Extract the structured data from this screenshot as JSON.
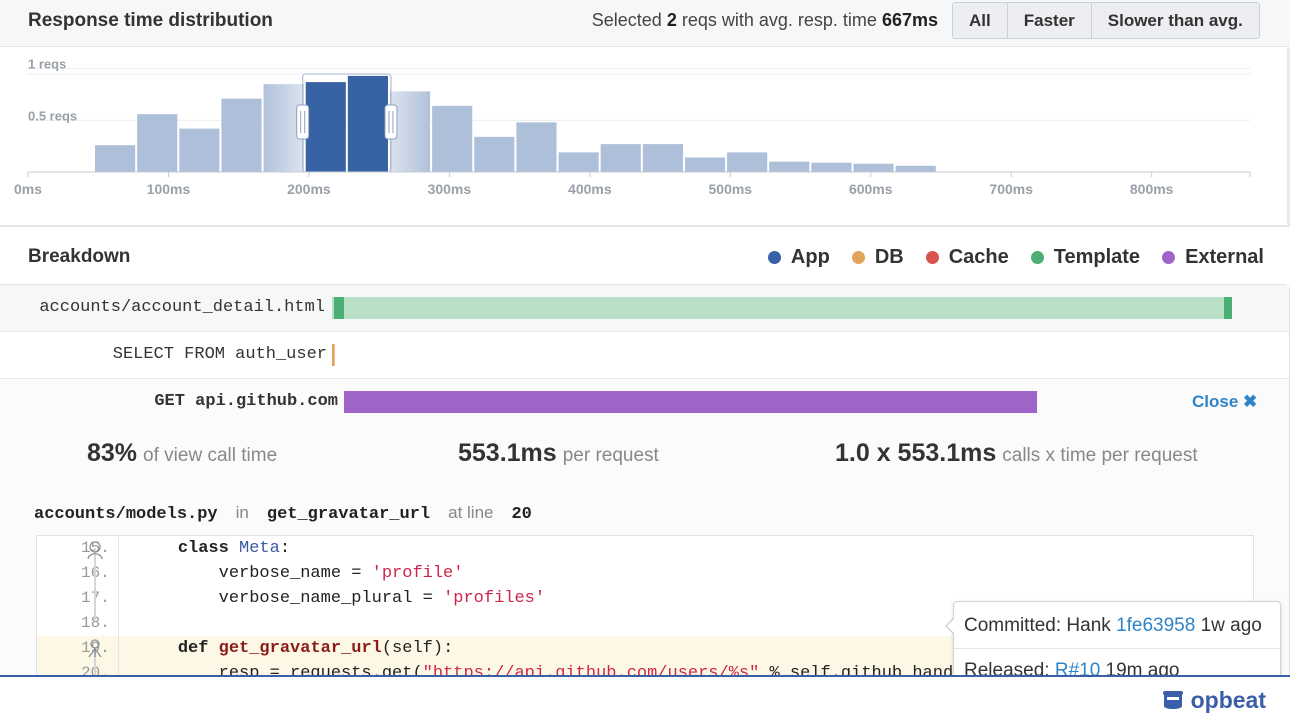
{
  "distribution": {
    "title": "Response time distribution",
    "summary": {
      "prefix": "Selected",
      "count": "2",
      "middle": "reqs with avg. resp. time",
      "avg": "667ms"
    },
    "filters": [
      "All",
      "Faster",
      "Slower than avg."
    ],
    "colors": {
      "bar": "#aebfd9",
      "selected": "#3762a3",
      "axis": "#c7ccd3"
    }
  },
  "chart_data": {
    "type": "bar",
    "x_unit": "ms",
    "xlim": [
      0,
      870
    ],
    "ylim": [
      0,
      1.2
    ],
    "ytick_labels": [
      "1 reqs",
      "0.5 reqs"
    ],
    "yticks": [
      1,
      0.5
    ],
    "xtick_labels": [
      "0ms",
      "100ms",
      "200ms",
      "300ms",
      "400ms",
      "500ms",
      "600ms",
      "700ms",
      "800ms"
    ],
    "xticks": [
      0,
      100,
      200,
      300,
      400,
      500,
      600,
      700,
      800
    ],
    "bin_width": 30,
    "bins_start": [
      47,
      77,
      107,
      137,
      167,
      197,
      227,
      257,
      287,
      317,
      347,
      377,
      407,
      437,
      467,
      497,
      527,
      557,
      587,
      617
    ],
    "values": [
      0.26,
      0.56,
      0.42,
      0.71,
      0.85,
      0.87,
      0.93,
      0.78,
      0.64,
      0.34,
      0.48,
      0.19,
      0.27,
      0.27,
      0.14,
      0.19,
      0.1,
      0.09,
      0.08,
      0.06
    ],
    "selected": [
      false,
      false,
      false,
      false,
      false,
      true,
      true,
      false,
      false,
      false,
      false,
      false,
      false,
      false,
      false,
      false,
      false,
      false,
      false,
      false
    ],
    "selection_range": [
      197,
      257
    ]
  },
  "breakdown": {
    "title": "Breakdown",
    "legend": [
      {
        "label": "App",
        "color": "#3762a3"
      },
      {
        "label": "DB",
        "color": "#e4a35a"
      },
      {
        "label": "Cache",
        "color": "#d9534f"
      },
      {
        "label": "Template",
        "color": "#4cae72"
      },
      {
        "label": "External",
        "color": "#a064c9"
      }
    ],
    "rows": [
      {
        "label": "accounts/account_detail.html",
        "kind": "Template",
        "start_fraction": 0.0,
        "fraction": 1.0
      },
      {
        "label": "SELECT FROM auth_user",
        "kind": "DB",
        "start_fraction": 0.0,
        "fraction": 0.003
      },
      {
        "label": "GET api.github.com",
        "kind": "External",
        "start_fraction": 0.0,
        "fraction": 0.83
      }
    ],
    "close_label": "Close",
    "close_icon": "close-icon",
    "stats": [
      {
        "big": "83%",
        "small": "of view call time"
      },
      {
        "big": "553.1ms",
        "small": "per request"
      },
      {
        "big": "1.0 x 553.1ms",
        "small": "calls x time per request"
      }
    ],
    "location": {
      "file": "accounts/models.py",
      "in_label": "in",
      "function": "get_gravatar_url",
      "line_label": "at line",
      "line": "20"
    },
    "code": {
      "lines": [
        {
          "no": "15.",
          "highlight": false,
          "parts": [
            {
              "t": "    ",
              "c": ""
            },
            {
              "t": "class",
              "c": "kw"
            },
            {
              "t": " ",
              "c": ""
            },
            {
              "t": "Meta",
              "c": "cls"
            },
            {
              "t": ":",
              "c": ""
            }
          ]
        },
        {
          "no": "16.",
          "highlight": false,
          "parts": [
            {
              "t": "        verbose_name = ",
              "c": ""
            },
            {
              "t": "'profile'",
              "c": "str"
            }
          ]
        },
        {
          "no": "17.",
          "highlight": false,
          "parts": [
            {
              "t": "        verbose_name_plural = ",
              "c": ""
            },
            {
              "t": "'profiles'",
              "c": "str"
            }
          ]
        },
        {
          "no": "18.",
          "highlight": false,
          "parts": [
            {
              "t": "",
              "c": ""
            }
          ]
        },
        {
          "no": "19.",
          "highlight": true,
          "parts": [
            {
              "t": "    ",
              "c": ""
            },
            {
              "t": "def",
              "c": "kw"
            },
            {
              "t": " ",
              "c": ""
            },
            {
              "t": "get_gravatar_url",
              "c": "fn"
            },
            {
              "t": "(self):",
              "c": ""
            }
          ]
        },
        {
          "no": "20.",
          "highlight": true,
          "parts": [
            {
              "t": "        resp = requests.get(",
              "c": ""
            },
            {
              "t": "\"https://api.github.com/users/%s\"",
              "c": "str"
            },
            {
              "t": " % self.github_handle)",
              "c": ""
            }
          ]
        }
      ]
    },
    "tooltip": {
      "committed_label": "Committed: Hank",
      "commit_hash": "1fe63958",
      "committed_ago": "1w ago",
      "released_label": "Released:",
      "release": "R#10",
      "released_ago": "19m ago"
    }
  },
  "footer": {
    "brand": "opbeat",
    "brand_icon": "opbeat-logo-icon"
  }
}
